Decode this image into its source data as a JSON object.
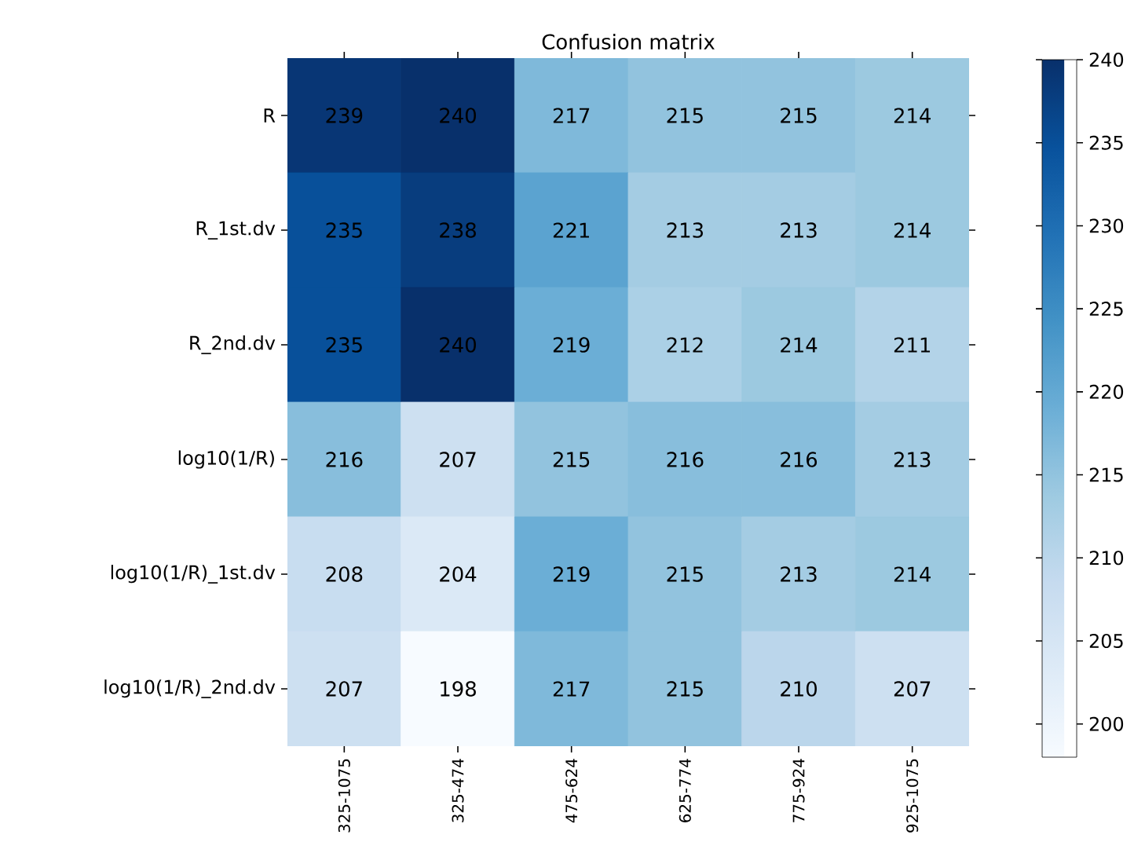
{
  "chart_data": {
    "type": "heatmap",
    "title": "Confusion matrix",
    "categories": [
      "325-1075",
      "325-474",
      "475-624",
      "625-774",
      "775-924",
      "925-1075"
    ],
    "y_categories": [
      "R",
      "R_1st.dv",
      "R_2nd.dv",
      "log10(1/R)",
      "log10(1/R)_1st.dv",
      "log10(1/R)_2nd.dv"
    ],
    "cells": [
      [
        239,
        240,
        217,
        215,
        215,
        214
      ],
      [
        235,
        238,
        221,
        213,
        213,
        214
      ],
      [
        235,
        240,
        219,
        212,
        214,
        211
      ],
      [
        216,
        207,
        215,
        216,
        216,
        213
      ],
      [
        208,
        204,
        219,
        215,
        213,
        214
      ],
      [
        207,
        198,
        217,
        215,
        210,
        207
      ]
    ],
    "clim": [
      198,
      240
    ],
    "cticks": [
      200,
      205,
      210,
      215,
      220,
      225,
      230,
      235,
      240
    ],
    "data_labels": true
  }
}
